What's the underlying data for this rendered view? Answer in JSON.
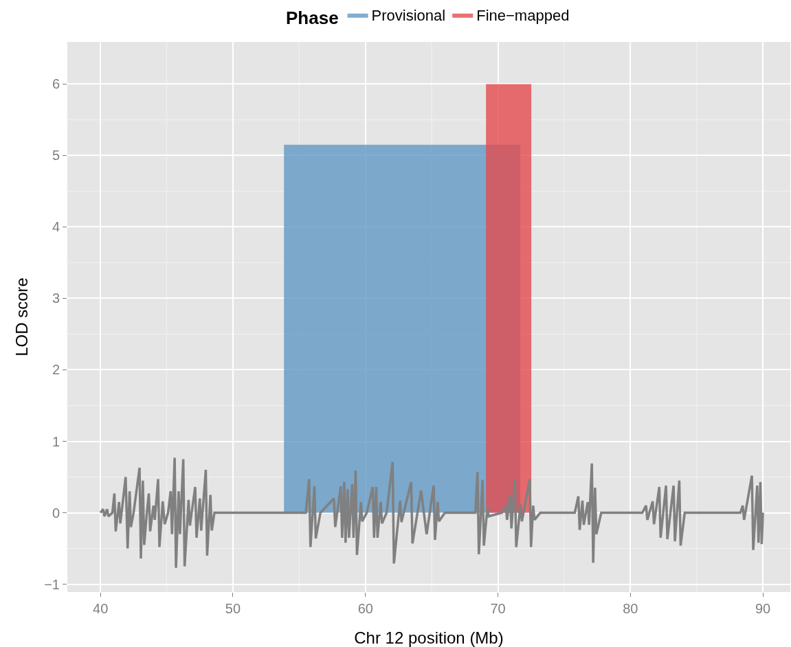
{
  "chart_data": {
    "type": "line",
    "xlabel": "Chr 12 position (Mb)",
    "ylabel": "LOD score",
    "legend_title": "Phase",
    "legend": "top",
    "grid": true,
    "xlim": [
      37.5,
      92.07
    ],
    "xticks": [
      40,
      50,
      60,
      70,
      80,
      90
    ],
    "ylim": [
      -1.11,
      6.59
    ],
    "yticks": [
      -1,
      0,
      1,
      2,
      3,
      4,
      5,
      6
    ],
    "series": [
      {
        "name": "Provisional",
        "type": "area",
        "color": "#6098c4",
        "x": [
          53.85,
          71.69
        ],
        "values": [
          5.15,
          5.15
        ]
      },
      {
        "name": "Fine−mapped",
        "type": "area",
        "color": "#e44b4f",
        "x": [
          69.1,
          72.52
        ],
        "values": [
          6.0,
          6.0
        ]
      },
      {
        "color": "#808080",
        "x": [
          40.0,
          40.2,
          40.3,
          40.5,
          40.6,
          40.9,
          41.05,
          41.15,
          41.4,
          41.5,
          41.9,
          42.05,
          42.2,
          42.3,
          42.5,
          42.95,
          43.05,
          43.2,
          43.3,
          43.5,
          43.65,
          43.75,
          44.0,
          44.1,
          44.35,
          44.45,
          44.7,
          44.85,
          45.1,
          45.3,
          45.4,
          45.6,
          45.7,
          45.9,
          46.0,
          46.25,
          46.35,
          46.65,
          46.75,
          47.15,
          47.25,
          47.5,
          47.6,
          47.95,
          48.05,
          48.3,
          48.4,
          48.6,
          55.5,
          55.75,
          55.85,
          56.15,
          56.25,
          56.6,
          57.62,
          57.72,
          58.14,
          58.24,
          58.4,
          58.5,
          58.66,
          58.76,
          59.0,
          59.1,
          59.26,
          59.36,
          59.66,
          59.76,
          60.1,
          60.55,
          60.65,
          60.81,
          60.91,
          61.15,
          61.25,
          61.6,
          62.05,
          62.15,
          62.62,
          62.72,
          63.45,
          63.55,
          64.2,
          64.41,
          64.62,
          65.15,
          65.25,
          65.45,
          65.55,
          66.0,
          68.3,
          68.46,
          68.56,
          68.84,
          68.94,
          69.2,
          69.3,
          70.3,
          70.59,
          70.69,
          70.92,
          71.02,
          71.28,
          71.38,
          71.71,
          71.81,
          72.4,
          72.5,
          72.66,
          72.76,
          73.2,
          75.8,
          76.07,
          76.17,
          76.38,
          76.48,
          76.78,
          76.88,
          77.09,
          77.19,
          77.33,
          77.43,
          77.8,
          80.9,
          81.18,
          81.28,
          81.68,
          81.78,
          82.18,
          82.28,
          82.69,
          82.79,
          83.26,
          83.36,
          83.69,
          83.79,
          84.1,
          88.3,
          88.48,
          88.58,
          89.17,
          89.27,
          89.57,
          89.67,
          89.81,
          89.91,
          90.0
        ],
        "values": [
          0,
          0.05,
          -0.05,
          0.05,
          -0.05,
          0,
          0.27,
          -0.26,
          0.15,
          -0.15,
          0.5,
          -0.5,
          0.3,
          -0.2,
          0,
          0.63,
          -0.64,
          0.45,
          -0.45,
          0,
          0.27,
          -0.26,
          0.1,
          -0.1,
          0.47,
          -0.48,
          0.16,
          -0.16,
          0,
          0.3,
          -0.3,
          0.77,
          -0.77,
          0.3,
          -0.3,
          0.75,
          -0.75,
          0.18,
          -0.18,
          0.36,
          -0.35,
          0.2,
          -0.25,
          0.6,
          -0.6,
          0.25,
          -0.25,
          0,
          0,
          0.47,
          -0.48,
          0.37,
          -0.36,
          0,
          0.2,
          -0.2,
          0.37,
          -0.35,
          0.43,
          -0.42,
          0.33,
          -0.35,
          0.4,
          -0.35,
          0.59,
          -0.59,
          0.15,
          -0.12,
          0,
          0.36,
          -0.35,
          0.36,
          -0.35,
          0.15,
          -0.15,
          0,
          0.71,
          -0.71,
          0.17,
          -0.13,
          0.43,
          -0.43,
          0.31,
          0,
          -0.3,
          0.38,
          -0.38,
          0.15,
          -0.12,
          0,
          0,
          0.57,
          -0.58,
          0.46,
          -0.46,
          0.06,
          -0.05,
          0,
          0.1,
          -0.1,
          0.25,
          -0.22,
          0.47,
          -0.48,
          0.12,
          -0.12,
          0.47,
          -0.48,
          0.1,
          -0.1,
          0,
          0,
          0.23,
          -0.24,
          0.17,
          -0.17,
          0.15,
          -0.17,
          0.69,
          -0.7,
          0.35,
          -0.3,
          0,
          0,
          0.1,
          -0.1,
          0.16,
          -0.16,
          0.36,
          -0.35,
          0.38,
          -0.37,
          0.38,
          -0.4,
          0.45,
          -0.46,
          0,
          0,
          0.1,
          -0.1,
          0.52,
          -0.52,
          0.38,
          -0.42,
          0.43,
          -0.44,
          0
        ]
      }
    ]
  }
}
